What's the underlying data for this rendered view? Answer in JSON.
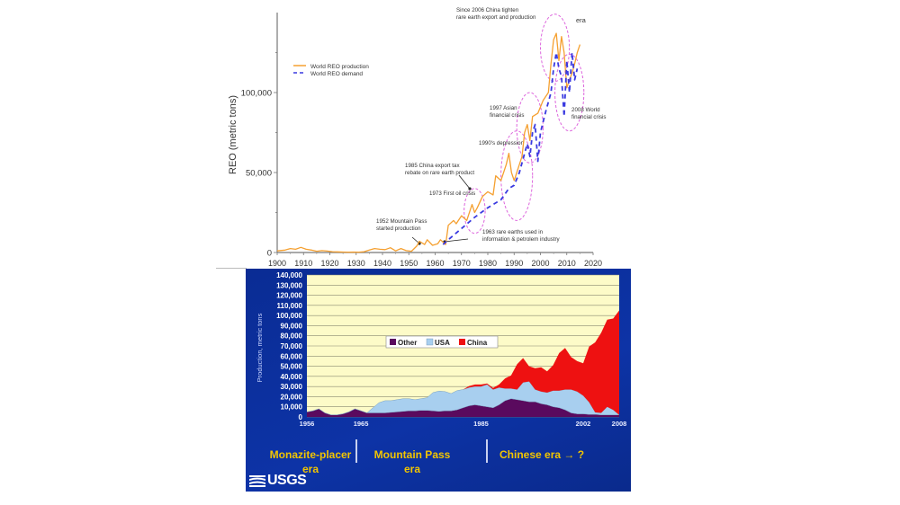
{
  "chart_data": [
    {
      "type": "line",
      "title": "",
      "xlabel": "",
      "ylabel": "REO (metric tons)",
      "xlim": [
        1900,
        2020
      ],
      "ylim": [
        0,
        140000
      ],
      "x_ticks": [
        "1900",
        "1910",
        "1920",
        "1930",
        "1940",
        "1950",
        "1960",
        "1970",
        "1980",
        "1990",
        "2000",
        "2010",
        "2020"
      ],
      "y_ticks": [
        "0",
        "50,000",
        "100,000"
      ],
      "legend": {
        "placement": "top-left",
        "entries": [
          "World REO production",
          "World REO demand"
        ]
      },
      "series": [
        {
          "name": "World REO production",
          "color": "#f5a030",
          "style": "solid",
          "points": [
            [
              1900,
              1000
            ],
            [
              1903,
              1500
            ],
            [
              1905,
              2500
            ],
            [
              1907,
              2000
            ],
            [
              1909,
              3200
            ],
            [
              1911,
              2000
            ],
            [
              1913,
              1500
            ],
            [
              1915,
              800
            ],
            [
              1917,
              1200
            ],
            [
              1919,
              900
            ],
            [
              1921,
              500
            ],
            [
              1923,
              400
            ],
            [
              1925,
              300
            ],
            [
              1927,
              200
            ],
            [
              1929,
              300
            ],
            [
              1931,
              200
            ],
            [
              1933,
              500
            ],
            [
              1935,
              1500
            ],
            [
              1937,
              2500
            ],
            [
              1939,
              2000
            ],
            [
              1941,
              1800
            ],
            [
              1943,
              3000
            ],
            [
              1945,
              1000
            ],
            [
              1947,
              2500
            ],
            [
              1949,
              1200
            ],
            [
              1951,
              800
            ],
            [
              1953,
              4000
            ],
            [
              1954,
              7000
            ],
            [
              1956,
              5000
            ],
            [
              1957,
              8000
            ],
            [
              1959,
              4500
            ],
            [
              1961,
              5500
            ],
            [
              1962,
              8000
            ],
            [
              1964,
              5000
            ],
            [
              1965,
              17000
            ],
            [
              1967,
              20000
            ],
            [
              1968,
              18000
            ],
            [
              1970,
              23000
            ],
            [
              1972,
              20000
            ],
            [
              1974,
              30000
            ],
            [
              1975,
              25000
            ],
            [
              1976,
              28000
            ],
            [
              1978,
              35000
            ],
            [
              1980,
              38000
            ],
            [
              1982,
              36000
            ],
            [
              1983,
              48000
            ],
            [
              1985,
              45000
            ],
            [
              1987,
              55000
            ],
            [
              1988,
              62000
            ],
            [
              1989,
              50000
            ],
            [
              1990,
              45000
            ],
            [
              1991,
              50000
            ],
            [
              1992,
              55000
            ],
            [
              1993,
              60000
            ],
            [
              1994,
              75000
            ],
            [
              1995,
              80000
            ],
            [
              1996,
              70000
            ],
            [
              1997,
              85000
            ],
            [
              1999,
              87000
            ],
            [
              2001,
              95000
            ],
            [
              2003,
              100000
            ],
            [
              2004,
              118000
            ],
            [
              2005,
              133000
            ],
            [
              2006,
              137000
            ],
            [
              2007,
              120000
            ],
            [
              2008,
              135000
            ],
            [
              2009,
              125000
            ],
            [
              2010,
              103000
            ],
            [
              2011,
              108000
            ],
            [
              2012,
              112000
            ],
            [
              2013,
              118000
            ],
            [
              2014,
              125000
            ],
            [
              2015,
              130000
            ]
          ]
        },
        {
          "name": "World REO demand",
          "color": "#3a3ae0",
          "style": "dashed",
          "points": [
            [
              1963,
              5000
            ],
            [
              1965,
              8000
            ],
            [
              1970,
              15000
            ],
            [
              1975,
              22000
            ],
            [
              1980,
              28000
            ],
            [
              1985,
              33000
            ],
            [
              1988,
              40000
            ],
            [
              1990,
              42000
            ],
            [
              1992,
              50000
            ],
            [
              1994,
              62000
            ],
            [
              1995,
              68000
            ],
            [
              1996,
              60000
            ],
            [
              1997,
              75000
            ],
            [
              1998,
              80000
            ],
            [
              1999,
              57000
            ],
            [
              2000,
              75000
            ],
            [
              2002,
              88000
            ],
            [
              2004,
              100000
            ],
            [
              2005,
              115000
            ],
            [
              2006,
              125000
            ],
            [
              2007,
              115000
            ],
            [
              2008,
              110000
            ],
            [
              2009,
              85000
            ],
            [
              2010,
              120000
            ],
            [
              2011,
              100000
            ],
            [
              2012,
              125000
            ],
            [
              2013,
              108000
            ],
            [
              2014,
              115000
            ]
          ]
        }
      ],
      "annotations": [
        {
          "text": "Since 2006 China tighten rare earth export and production",
          "x": 2006,
          "y": 135000
        },
        {
          "text": "era",
          "x": 2014,
          "y": 145000
        },
        {
          "text": "1997 Asian financial crisis",
          "x": 1997,
          "y": 88000
        },
        {
          "text": "2008 World financial crisis",
          "x": 2010,
          "y": 108000
        },
        {
          "text": "1990's depression",
          "x": 1990,
          "y": 62000
        },
        {
          "text": "1985 China export tax rebate on rare earth product",
          "x": 1985,
          "y": 45000
        },
        {
          "text": "1973 First oil crisis",
          "x": 1974,
          "y": 28000
        },
        {
          "text": "1952 Mountain Pass started production",
          "x": 1952,
          "y": 4000
        },
        {
          "text": "1963 rare earths used in information & petrolem industry",
          "x": 1964,
          "y": 5000
        }
      ]
    },
    {
      "type": "area",
      "stacked": true,
      "title": "",
      "xlabel": "",
      "ylabel": "Production, metric tons",
      "xlim": [
        1956,
        2008
      ],
      "ylim": [
        0,
        140000
      ],
      "x_ticks": [
        "1956",
        "1965",
        "1985",
        "2002",
        "2008"
      ],
      "y_ticks": [
        "0",
        "10,000",
        "20,000",
        "30,000",
        "40,000",
        "50,000",
        "60,000",
        "70,000",
        "80,000",
        "90,000",
        "100,000",
        "110,000",
        "120,000",
        "130,000",
        "140,000"
      ],
      "grid": true,
      "legend": {
        "placement": "center",
        "entries": [
          "Other",
          "USA",
          "China"
        ]
      },
      "x": [
        1956,
        1957,
        1958,
        1959,
        1960,
        1961,
        1962,
        1963,
        1964,
        1965,
        1966,
        1967,
        1968,
        1969,
        1970,
        1971,
        1972,
        1973,
        1974,
        1975,
        1976,
        1977,
        1978,
        1979,
        1980,
        1981,
        1982,
        1983,
        1984,
        1985,
        1986,
        1987,
        1988,
        1989,
        1990,
        1991,
        1992,
        1993,
        1994,
        1995,
        1996,
        1997,
        1998,
        1999,
        2000,
        2001,
        2002,
        2003,
        2004,
        2005,
        2006,
        2007,
        2008
      ],
      "series": [
        {
          "name": "Other",
          "color": "#5a0a5e",
          "values": [
            5000,
            6000,
            8000,
            4000,
            2000,
            2000,
            3000,
            5000,
            8000,
            6000,
            4000,
            4000,
            4000,
            4000,
            4500,
            5000,
            5500,
            6000,
            6000,
            6500,
            6500,
            6000,
            5500,
            6000,
            6000,
            7000,
            9000,
            11000,
            12000,
            11000,
            10000,
            9000,
            12000,
            16000,
            18000,
            17000,
            16000,
            15000,
            15000,
            13000,
            12000,
            10000,
            9000,
            7000,
            4000,
            3000,
            3000,
            2500,
            2500,
            2000,
            2000,
            2000,
            2000
          ]
        },
        {
          "name": "USA",
          "color": "#a8cfef",
          "values": [
            0,
            0,
            0,
            0,
            0,
            0,
            0,
            0,
            0,
            0,
            0,
            5000,
            10000,
            12000,
            11500,
            12000,
            12500,
            12000,
            11000,
            11500,
            12500,
            18000,
            20000,
            19000,
            17000,
            19000,
            18000,
            18000,
            18000,
            19000,
            22000,
            18000,
            17000,
            12000,
            10000,
            10000,
            18000,
            20000,
            12000,
            12000,
            12000,
            16000,
            17000,
            20000,
            23000,
            22000,
            18000,
            12000,
            2000,
            2000,
            8000,
            5000,
            0
          ]
        },
        {
          "name": "China",
          "color": "#ee1111",
          "values": [
            0,
            0,
            0,
            0,
            0,
            0,
            0,
            0,
            0,
            0,
            0,
            0,
            0,
            0,
            0,
            0,
            0,
            0,
            0,
            0,
            0,
            0,
            0,
            0,
            0,
            0,
            0,
            1500,
            2000,
            2000,
            1000,
            1500,
            3000,
            10000,
            13000,
            25000,
            24000,
            15000,
            21000,
            24000,
            21000,
            25000,
            37000,
            41000,
            32000,
            30000,
            32000,
            55000,
            69000,
            79000,
            86000,
            90000,
            103000
          ]
        }
      ],
      "era_labels": [
        {
          "text": "Monazite-placer era"
        },
        {
          "text": "Mountain Pass era"
        },
        {
          "text": "Chinese era → ?"
        }
      ]
    }
  ],
  "branding": {
    "logo_text": "USGS"
  }
}
